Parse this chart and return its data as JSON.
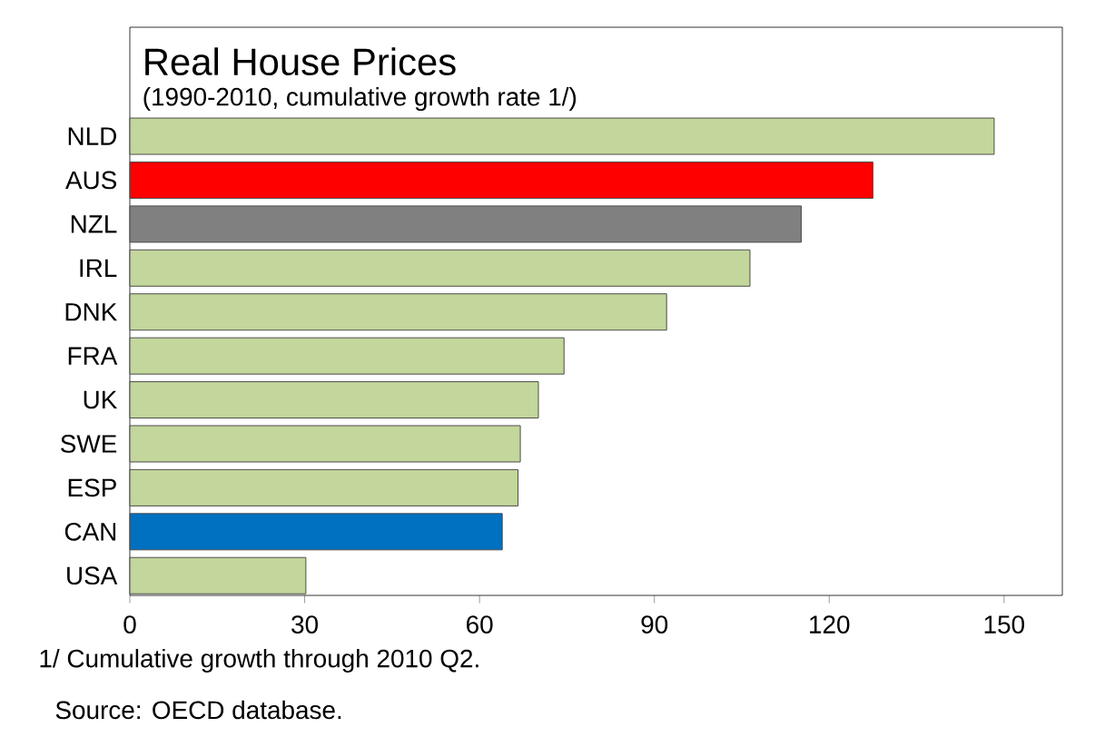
{
  "chart_data": {
    "type": "bar",
    "orientation": "horizontal",
    "title": "Real House Prices",
    "subtitle": "(1990-2010, cumulative growth rate 1/)",
    "categories": [
      "NLD",
      "AUS",
      "NZL",
      "IRL",
      "DNK",
      "FRA",
      "UK",
      "SWE",
      "ESP",
      "CAN",
      "USA"
    ],
    "values": [
      148.3,
      127.5,
      115.2,
      106.4,
      92.1,
      74.5,
      70.1,
      67.0,
      66.6,
      63.9,
      30.2
    ],
    "colors": [
      "#c3d69b",
      "#ff0000",
      "#808080",
      "#c3d69b",
      "#c3d69b",
      "#c3d69b",
      "#c3d69b",
      "#c3d69b",
      "#c3d69b",
      "#0070c0",
      "#c3d69b"
    ],
    "xlim": [
      0,
      160
    ],
    "xticks": [
      0,
      30,
      60,
      90,
      120,
      150
    ],
    "grid": false,
    "annotations": [
      "1/ Cumulative growth through 2010 Q2.",
      "Source: OECD database."
    ]
  }
}
